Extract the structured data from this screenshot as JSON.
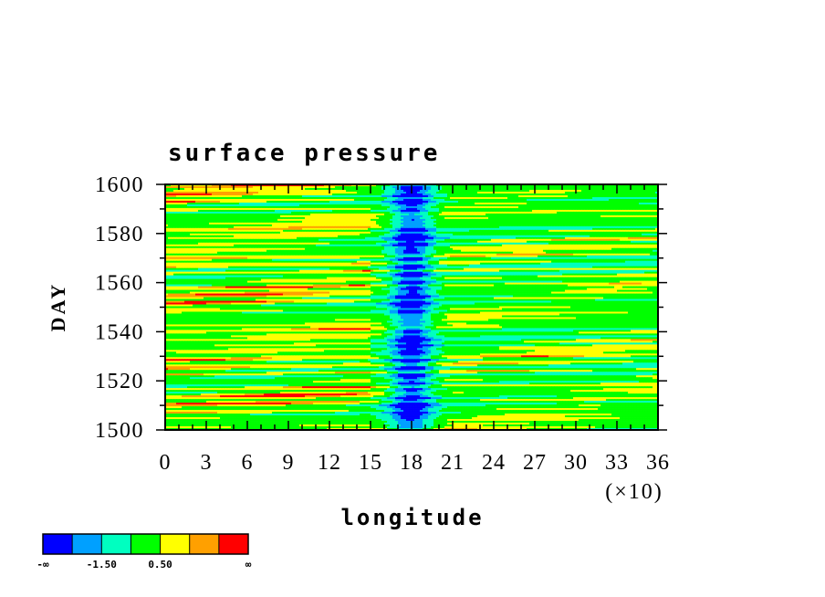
{
  "chart_data": {
    "type": "heatmap",
    "title": "surface pressure",
    "xlabel": "longitude",
    "ylabel": "DAY",
    "x_multiplier_label": "(×10)",
    "xlim": [
      0,
      36
    ],
    "ylim": [
      1500,
      1600
    ],
    "x_ticks": [
      "0",
      "3",
      "6",
      "9",
      "12",
      "15",
      "18",
      "21",
      "24",
      "27",
      "30",
      "33",
      "36"
    ],
    "y_ticks": [
      "1500",
      "1520",
      "1540",
      "1560",
      "1580",
      "1600"
    ],
    "color_levels": [
      "#0000ff",
      "#00a0ff",
      "#00ffc0",
      "#00ff00",
      "#ffff00",
      "#ffa000",
      "#ff0000"
    ],
    "colorbar_labels": [
      "-∞",
      "-1.50",
      "0.50",
      "∞"
    ],
    "trough_longitude": 18
  }
}
